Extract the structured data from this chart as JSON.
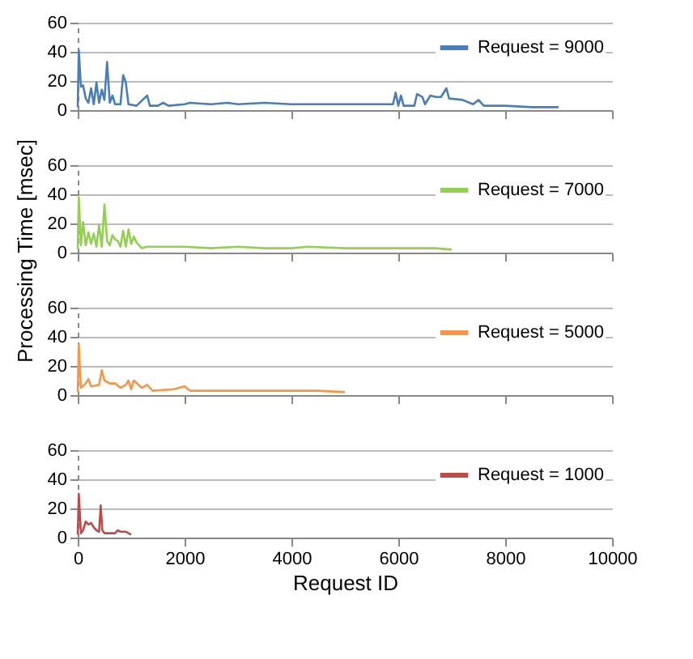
{
  "chart_data": [
    {
      "type": "line",
      "ylabel": "Processing Time [msec]",
      "xlim": [
        0,
        10000
      ],
      "xticks": [
        0,
        2000,
        4000,
        6000,
        8000,
        10000
      ],
      "ylim": [
        0,
        60
      ],
      "yticks": [
        0,
        20,
        40,
        60
      ],
      "grid": "y",
      "legend": "top right",
      "tick_labels": "y",
      "series": [
        {
          "name": "Request = 9000",
          "color": "#4a7ebb",
          "x": [
            0,
            20,
            60,
            100,
            150,
            200,
            250,
            300,
            350,
            400,
            450,
            500,
            550,
            600,
            650,
            700,
            800,
            850,
            900,
            950,
            1100,
            1300,
            1350,
            1500,
            1600,
            1700,
            2000,
            2100,
            2500,
            2800,
            3000,
            3500,
            4000,
            4500,
            5000,
            5500,
            5900,
            5950,
            6000,
            6050,
            6100,
            6300,
            6350,
            6450,
            6500,
            6600,
            6700,
            6800,
            6900,
            6950,
            7200,
            7400,
            7500,
            7600,
            8000,
            8500,
            9000
          ],
          "values": [
            2,
            41,
            16,
            17,
            8,
            5,
            15,
            4,
            19,
            5,
            14,
            7,
            33,
            5,
            10,
            4,
            4,
            24,
            19,
            4,
            3,
            10,
            3,
            3,
            5,
            3,
            4,
            5,
            4,
            5,
            4,
            5,
            4,
            4,
            4,
            4,
            4,
            12,
            3,
            10,
            3,
            3,
            11,
            9,
            4,
            10,
            9,
            9,
            15,
            8,
            7,
            4,
            7,
            3,
            3,
            2,
            2
          ]
        }
      ]
    },
    {
      "type": "line",
      "xlim": [
        0,
        10000
      ],
      "xticks": [
        0,
        2000,
        4000,
        6000,
        8000,
        10000
      ],
      "ylim": [
        0,
        60
      ],
      "yticks": [
        0,
        20,
        40,
        60
      ],
      "grid": "y",
      "legend": "top right",
      "tick_labels": "y",
      "series": [
        {
          "name": "Request = 7000",
          "color": "#92d050",
          "x": [
            0,
            20,
            60,
            100,
            150,
            200,
            250,
            300,
            350,
            400,
            450,
            500,
            550,
            600,
            650,
            700,
            750,
            800,
            850,
            900,
            950,
            1000,
            1050,
            1100,
            1200,
            1300,
            1600,
            2000,
            2500,
            3000,
            3500,
            4000,
            4300,
            5000,
            6000,
            6700,
            7000
          ],
          "values": [
            2,
            38,
            5,
            21,
            5,
            14,
            6,
            13,
            4,
            19,
            4,
            33,
            8,
            5,
            12,
            9,
            8,
            4,
            15,
            4,
            16,
            6,
            11,
            7,
            3,
            4,
            4,
            4,
            3,
            4,
            3,
            3,
            4,
            3,
            3,
            3,
            2
          ]
        }
      ]
    },
    {
      "type": "line",
      "xlim": [
        0,
        10000
      ],
      "xticks": [
        0,
        2000,
        4000,
        6000,
        8000,
        10000
      ],
      "ylim": [
        0,
        60
      ],
      "yticks": [
        0,
        20,
        40,
        60
      ],
      "grid": "y",
      "legend": "top right",
      "tick_labels": "y",
      "series": [
        {
          "name": "Request = 5000",
          "color": "#f79646",
          "x": [
            0,
            20,
            60,
            150,
            200,
            250,
            400,
            450,
            500,
            600,
            700,
            800,
            900,
            950,
            1000,
            1050,
            1200,
            1300,
            1400,
            1800,
            2000,
            2100,
            2500,
            3000,
            3500,
            4000,
            4500,
            5000
          ],
          "values": [
            2,
            35,
            5,
            8,
            11,
            6,
            7,
            17,
            10,
            8,
            8,
            5,
            7,
            10,
            4,
            10,
            5,
            7,
            3,
            4,
            6,
            3,
            3,
            3,
            3,
            3,
            3,
            2
          ]
        }
      ]
    },
    {
      "type": "line",
      "xlabel": "Request ID",
      "xlim": [
        0,
        10000
      ],
      "xticks": [
        0,
        2000,
        4000,
        6000,
        8000,
        10000
      ],
      "ylim": [
        0,
        60
      ],
      "yticks": [
        0,
        20,
        40,
        60
      ],
      "grid": "y",
      "legend": "top right",
      "series": [
        {
          "name": "Request = 1000",
          "color": "#be4b48",
          "x": [
            0,
            20,
            60,
            100,
            150,
            200,
            250,
            300,
            350,
            400,
            430,
            460,
            500,
            600,
            700,
            750,
            800,
            900,
            1000
          ],
          "values": [
            2,
            30,
            3,
            5,
            11,
            9,
            10,
            7,
            5,
            4,
            22,
            5,
            3,
            3,
            3,
            5,
            4,
            4,
            2
          ]
        }
      ]
    }
  ]
}
